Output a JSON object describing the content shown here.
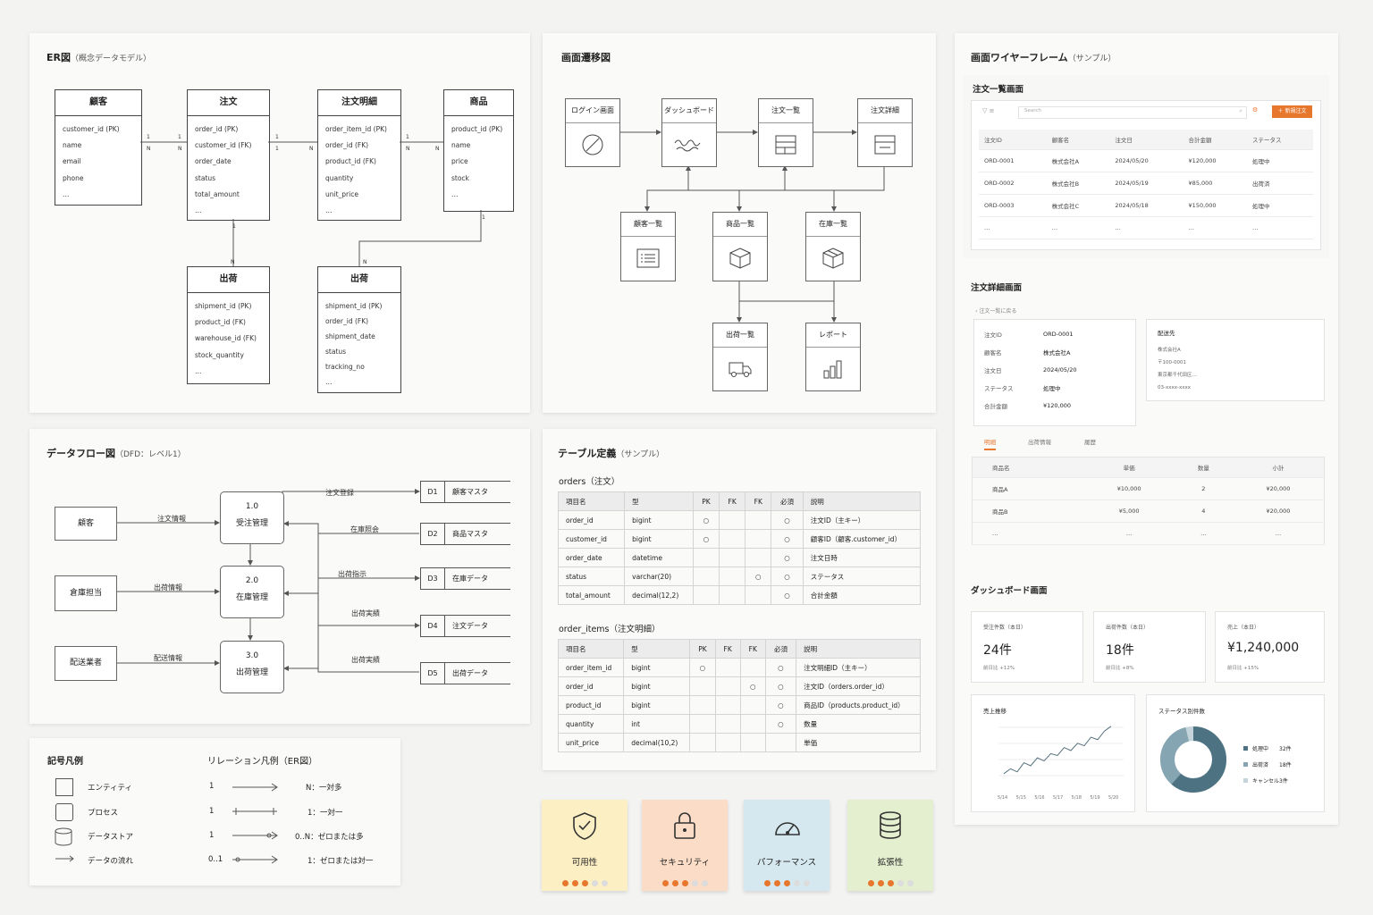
{
  "er": {
    "title": "ER図",
    "subtitle": "（概念データモデル）",
    "entities": {
      "customer": {
        "name": "顧客",
        "fields": [
          "customer_id (PK)",
          "name",
          "email",
          "phone",
          "…"
        ]
      },
      "order": {
        "name": "注文",
        "fields": [
          "order_id (PK)",
          "customer_id (FK)",
          "order_date",
          "status",
          "total_amount",
          "…"
        ]
      },
      "order_detail": {
        "name": "注文明細",
        "fields": [
          "order_item_id (PK)",
          "order_id (FK)",
          "product_id (FK)",
          "quantity",
          "unit_price",
          "…"
        ]
      },
      "product": {
        "name": "商品",
        "fields": [
          "product_id (PK)",
          "name",
          "price",
          "stock",
          "…"
        ]
      },
      "shipment_a": {
        "name": "出荷",
        "fields": [
          "shipment_id (PK)",
          "product_id (FK)",
          "warehouse_id (FK)",
          "stock_quantity",
          "…"
        ]
      },
      "shipment_b": {
        "name": "出荷",
        "fields": [
          "shipment_id (PK)",
          "order_id (FK)",
          "shipment_date",
          "status",
          "tracking_no",
          "…"
        ]
      }
    },
    "card": {
      "one": "1",
      "many": "N"
    }
  },
  "screen_flow": {
    "title": "画面遷移図",
    "screens": {
      "login": "ログイン画面",
      "dashboard": "ダッシュボード",
      "order_list": "注文一覧",
      "order_detail": "注文詳細",
      "customer_list": "顧客一覧",
      "product_list": "商品一覧",
      "inventory_list": "在庫一覧",
      "shipment_list": "出荷一覧",
      "report": "レポート"
    }
  },
  "wireframe": {
    "title": "画面ワイヤーフレーム",
    "subtitle": "（サンプル）",
    "order_list": {
      "title": "注文一覧画面",
      "search_placeholder": "Search",
      "new_button": "＋ 新規注文",
      "headers": [
        "注文ID",
        "顧客名",
        "注文日",
        "合計金額",
        "ステータス"
      ],
      "rows": [
        [
          "ORD-0001",
          "株式会社A",
          "2024/05/20",
          "¥120,000",
          "処理中"
        ],
        [
          "ORD-0002",
          "株式会社B",
          "2024/05/19",
          "¥85,000",
          "出荷済"
        ],
        [
          "ORD-0003",
          "株式会社C",
          "2024/05/18",
          "¥150,000",
          "処理中"
        ],
        [
          "…",
          "…",
          "…",
          "…",
          "…"
        ]
      ]
    },
    "order_detail": {
      "title": "注文詳細画面",
      "back": "注文一覧に戻る",
      "fields": [
        {
          "k": "注文ID",
          "v": "ORD-0001"
        },
        {
          "k": "顧客名",
          "v": "株式会社A"
        },
        {
          "k": "注文日",
          "v": "2024/05/20"
        },
        {
          "k": "ステータス",
          "v": "処理中"
        },
        {
          "k": "合計金額",
          "v": "¥120,000"
        }
      ],
      "ship_title": "配送先",
      "ship_lines": [
        "株式会社A",
        "〒100-0001",
        "東京都千代田区…",
        "03-xxxx-xxxx"
      ],
      "tabs": [
        "明細",
        "出荷情報",
        "履歴"
      ],
      "headers": [
        "商品名",
        "単価",
        "数量",
        "小計"
      ],
      "rows": [
        [
          "商品A",
          "¥10,000",
          "2",
          "¥20,000"
        ],
        [
          "商品B",
          "¥5,000",
          "4",
          "¥20,000"
        ],
        [
          "…",
          "…",
          "…",
          "…"
        ]
      ]
    },
    "dashboard": {
      "title": "ダッシュボード画面",
      "kpis": [
        {
          "label": "受注件数（本日）",
          "value": "24件",
          "delta": "前日比 +12%"
        },
        {
          "label": "出荷件数（本日）",
          "value": "18件",
          "delta": "前日比 +8%"
        },
        {
          "label": "売上（本日）",
          "value": "¥1,240,000",
          "delta": "前日比 +15%"
        }
      ],
      "trend_title": "売上推移",
      "trend_x": [
        "5/14",
        "5/15",
        "5/16",
        "5/17",
        "5/18",
        "5/19",
        "5/20"
      ],
      "status_title": "ステータス別件数",
      "legend": [
        {
          "label": "処理中",
          "value": "32件",
          "color": "#4d7383"
        },
        {
          "label": "出荷済",
          "value": "18件",
          "color": "#86a5b2"
        },
        {
          "label": "キャンセル",
          "value": "3件",
          "color": "#c4d4da"
        }
      ]
    }
  },
  "dfd": {
    "title": "データフロー図",
    "subtitle": "（DFD：レベル1）",
    "externals": [
      "顧客",
      "倉庫担当",
      "配送業者"
    ],
    "processes": [
      {
        "num": "1.0",
        "name": "受注管理"
      },
      {
        "num": "2.0",
        "name": "在庫管理"
      },
      {
        "num": "3.0",
        "name": "出荷管理"
      }
    ],
    "stores": [
      {
        "id": "D1",
        "name": "顧客マスタ"
      },
      {
        "id": "D2",
        "name": "商品マスタ"
      },
      {
        "id": "D3",
        "name": "在庫データ"
      },
      {
        "id": "D4",
        "name": "注文データ"
      },
      {
        "id": "D5",
        "name": "出荷データ"
      }
    ],
    "flows": {
      "order_info": "注文情報",
      "ship_info": "出荷情報",
      "delivery_info": "配送情報",
      "order_reg": "注文登録",
      "stock_ref": "在庫照会",
      "ship_instr": "出荷指示",
      "ship_result1": "出荷実績",
      "ship_result2": "出荷実績"
    }
  },
  "tables": {
    "title": "テーブル定義",
    "subtitle": "（サンプル）",
    "headers": [
      "項目名",
      "型",
      "PK",
      "FK",
      "FK",
      "必須",
      "説明"
    ],
    "orders": {
      "title": "orders（注文）",
      "rows": [
        [
          "order_id",
          "bigint",
          "○",
          "",
          "",
          "○",
          "注文ID（主キー）"
        ],
        [
          "customer_id",
          "bigint",
          "○",
          "",
          "",
          "○",
          "顧客ID（顧客.customer_id）"
        ],
        [
          "order_date",
          "datetime",
          "",
          "",
          "",
          "○",
          "注文日時"
        ],
        [
          "status",
          "varchar(20)",
          "",
          "",
          "○",
          "○",
          "ステータス"
        ],
        [
          "total_amount",
          "decimal(12,2)",
          "",
          "",
          "",
          "○",
          "合計金額"
        ]
      ]
    },
    "order_items": {
      "title": "order_items（注文明細）",
      "rows": [
        [
          "order_item_id",
          "bigint",
          "○",
          "",
          "",
          "○",
          "注文明細ID（主キー）"
        ],
        [
          "order_id",
          "bigint",
          "",
          "",
          "○",
          "○",
          "注文ID（orders.order_id）"
        ],
        [
          "product_id",
          "bigint",
          "",
          "",
          "",
          "○",
          "商品ID（products.product_id）"
        ],
        [
          "quantity",
          "int",
          "",
          "",
          "",
          "○",
          "数量"
        ],
        [
          "unit_price",
          "decimal(10,2)",
          "",
          "",
          "",
          "",
          "単価"
        ]
      ]
    }
  },
  "legend": {
    "symbols_title": "記号凡例",
    "symbols": [
      "エンティティ",
      "プロセス",
      "データストア",
      "データの流れ"
    ],
    "relations_title": "リレーション凡例（ER図）",
    "relations": [
      {
        "left": "1",
        "right": "N：一対多"
      },
      {
        "left": "1",
        "right": "1：一対一"
      },
      {
        "left": "1",
        "right": "0..N：ゼロまたは多"
      },
      {
        "left": "0..1",
        "right": "1：ゼロまたは対一"
      }
    ]
  },
  "notes": [
    {
      "label": "可用性",
      "color": "#fbefc3",
      "icon": "shield-check-icon",
      "filled": 3
    },
    {
      "label": "セキュリティ",
      "color": "#fbdcc6",
      "icon": "lock-icon",
      "filled": 3
    },
    {
      "label": "パフォーマンス",
      "color": "#d6e8ef",
      "icon": "gauge-icon",
      "filled": 3
    },
    {
      "label": "拡張性",
      "color": "#e4efcf",
      "icon": "database-icon",
      "filled": 3
    }
  ],
  "accent": "#e8772e"
}
